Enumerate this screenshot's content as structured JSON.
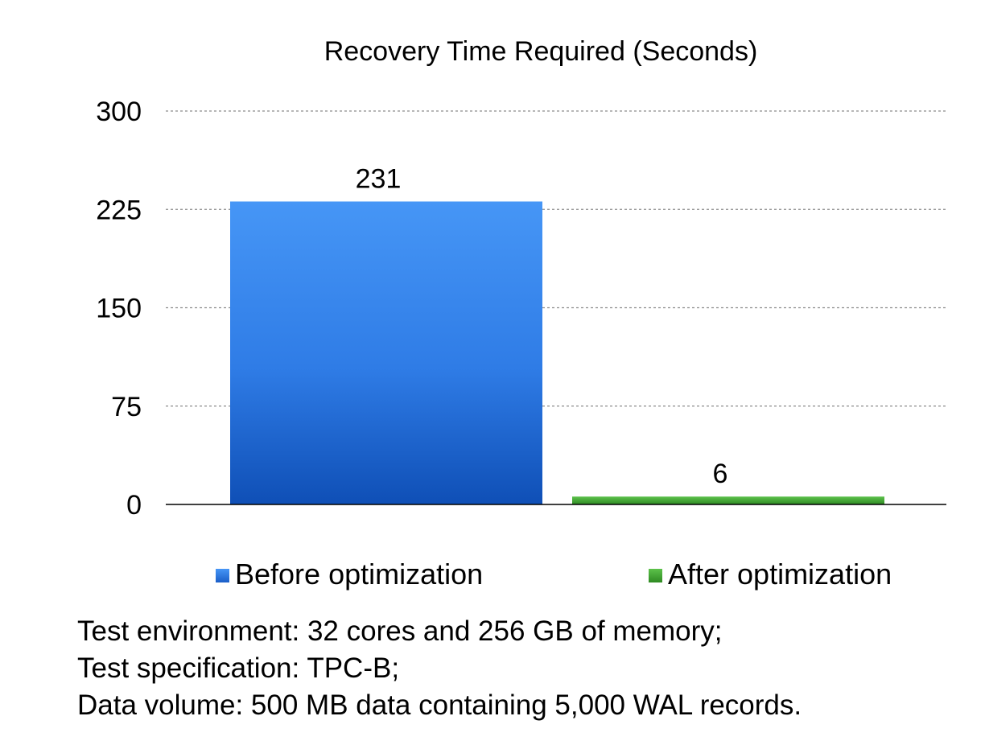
{
  "chart_data": {
    "type": "bar",
    "title": "Recovery Time Required (Seconds)",
    "categories": [
      "Before optimization",
      "After optimization"
    ],
    "series": [
      {
        "name": "Before optimization",
        "values": [
          231,
          null
        ],
        "color": "#3d8ef0"
      },
      {
        "name": "After optimization",
        "values": [
          null,
          6
        ],
        "color": "#4ca43a"
      }
    ],
    "values": [
      231,
      6
    ],
    "data_labels": [
      "231",
      "6"
    ],
    "ylim": [
      0,
      300
    ],
    "yticks": [
      0,
      75,
      150,
      225,
      300
    ],
    "ytick_labels": [
      "0",
      "75",
      "150",
      "225",
      "300"
    ],
    "xlabel": "",
    "ylabel": "",
    "grid": true,
    "legend_position": "bottom",
    "legend": [
      {
        "label": "Before optimization",
        "color": "#3d8ef0"
      },
      {
        "label": "After optimization",
        "color": "#4ca43a"
      }
    ]
  },
  "footnotes": {
    "line1": "Test environment: 32 cores and 256 GB of memory;",
    "line2": "Test specification: TPC-B;",
    "line3": "Data volume: 500 MB data containing 5,000 WAL records."
  }
}
